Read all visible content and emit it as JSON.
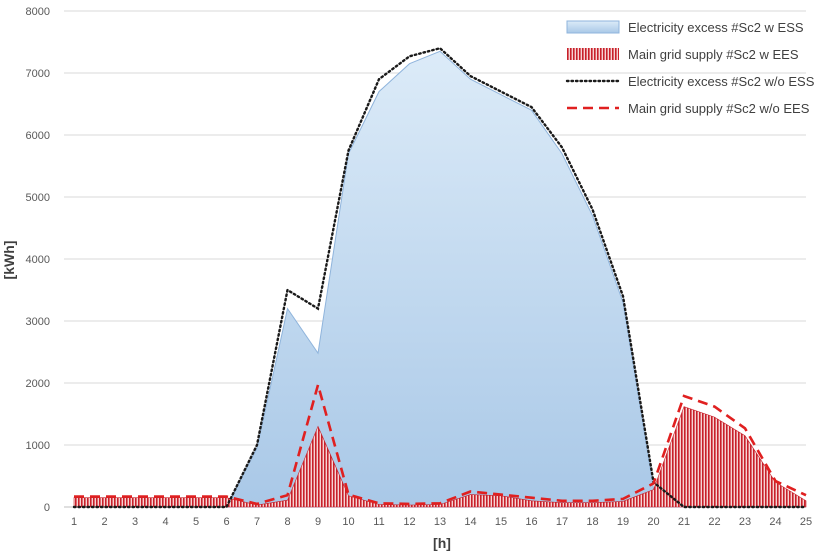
{
  "chart_data": {
    "type": "area",
    "xlabel": "[h]",
    "ylabel": "[kWh]",
    "ylim": [
      0,
      8000
    ],
    "yticks": [
      "0",
      "1000",
      "2000",
      "3000",
      "4000",
      "5000",
      "6000",
      "7000",
      "8000"
    ],
    "x": [
      "1",
      "2",
      "3",
      "4",
      "5",
      "6",
      "7",
      "8",
      "9",
      "10",
      "11",
      "12",
      "13",
      "14",
      "15",
      "16",
      "17",
      "18",
      "19",
      "20",
      "21",
      "22",
      "23",
      "24",
      "25"
    ],
    "grid": "horizontal",
    "legend": "top-right",
    "series": [
      {
        "name": "Electricity excess #Sc2 w ESS",
        "style": "area",
        "color": "#9dc3e6",
        "values": [
          0,
          0,
          0,
          0,
          0,
          0,
          950,
          3200,
          2480,
          5700,
          6700,
          7150,
          7350,
          6900,
          6650,
          6400,
          5700,
          4700,
          3300,
          300,
          0,
          0,
          0,
          0,
          0
        ]
      },
      {
        "name": "Main grid supply #Sc2 w EES",
        "style": "hatched-area",
        "color": "#c00000",
        "values": [
          150,
          150,
          150,
          150,
          150,
          150,
          30,
          110,
          1300,
          180,
          40,
          30,
          40,
          200,
          180,
          100,
          70,
          70,
          90,
          280,
          1620,
          1450,
          1150,
          400,
          100
        ]
      },
      {
        "name": "Electricity excess #Sc2 w/o ESS",
        "style": "dotted-line",
        "color": "#1a1a1a",
        "values": [
          0,
          0,
          0,
          0,
          0,
          0,
          1000,
          3500,
          3200,
          5750,
          6900,
          7270,
          7400,
          6950,
          6700,
          6450,
          5800,
          4800,
          3400,
          400,
          0,
          0,
          0,
          0,
          0
        ]
      },
      {
        "name": "Main grid supply #Sc2 w/o EES",
        "style": "dashed-line",
        "color": "#e02020",
        "values": [
          170,
          170,
          170,
          170,
          170,
          170,
          50,
          190,
          1970,
          200,
          60,
          50,
          60,
          250,
          200,
          150,
          100,
          100,
          130,
          380,
          1790,
          1620,
          1270,
          420,
          190
        ]
      }
    ]
  }
}
